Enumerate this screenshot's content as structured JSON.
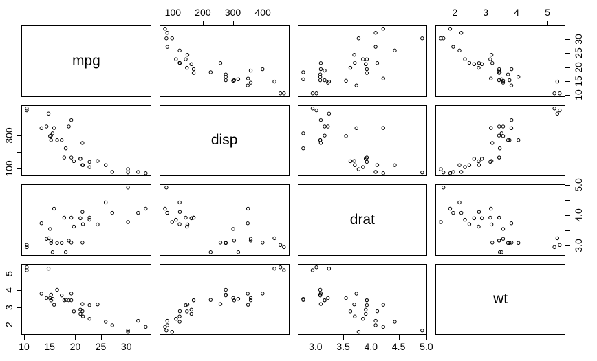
{
  "figure": {
    "description": "R pairs scatterplot matrix of mtcars variables",
    "background": "#ffffff"
  },
  "chart_data": {
    "type": "scatter",
    "subtype": "pairs-matrix",
    "title": "",
    "variables": [
      "mpg",
      "disp",
      "drat",
      "wt"
    ],
    "n_points": 32,
    "observations": {
      "mpg": [
        21.0,
        21.0,
        22.8,
        21.4,
        18.7,
        18.1,
        14.3,
        24.4,
        22.8,
        19.2,
        17.8,
        16.4,
        17.3,
        15.2,
        10.4,
        10.4,
        14.7,
        32.4,
        30.4,
        33.9,
        21.5,
        15.5,
        15.2,
        13.3,
        19.2,
        27.3,
        26.0,
        30.4,
        15.8,
        19.7,
        15.0,
        21.4
      ],
      "disp": [
        160,
        160,
        108,
        258,
        360,
        225,
        360,
        146.7,
        140.8,
        167.6,
        167.6,
        275.8,
        275.8,
        275.8,
        472,
        460,
        440,
        78.7,
        75.7,
        71.1,
        120.1,
        318,
        304,
        350,
        400,
        79,
        120.3,
        95.1,
        351,
        145,
        301,
        121
      ],
      "drat": [
        3.9,
        3.9,
        3.85,
        3.08,
        3.15,
        2.76,
        3.21,
        3.69,
        3.92,
        3.92,
        3.92,
        3.07,
        3.07,
        3.07,
        2.93,
        3.0,
        3.23,
        4.08,
        4.93,
        4.22,
        3.7,
        2.76,
        3.15,
        3.73,
        3.08,
        4.08,
        4.43,
        3.77,
        4.22,
        3.62,
        3.54,
        4.11
      ],
      "wt": [
        2.62,
        2.875,
        2.32,
        3.215,
        3.44,
        3.46,
        3.57,
        3.19,
        3.15,
        3.44,
        3.44,
        4.07,
        3.73,
        3.78,
        5.25,
        5.424,
        5.345,
        2.2,
        1.615,
        1.835,
        2.465,
        3.52,
        3.435,
        3.84,
        3.845,
        1.935,
        2.14,
        1.53,
        3.17,
        2.77,
        3.57,
        2.78
      ]
    },
    "axis_instances": [
      {
        "side": "top",
        "col": 1,
        "var": "disp",
        "ticks": [
          100,
          200,
          300,
          400
        ],
        "labels": [
          "100",
          "200",
          "300",
          "400"
        ]
      },
      {
        "side": "top",
        "col": 3,
        "var": "wt",
        "ticks": [
          2,
          3,
          4,
          5
        ],
        "labels": [
          "2",
          "3",
          "4",
          "5"
        ]
      },
      {
        "side": "right",
        "row": 0,
        "var": "mpg",
        "ticks": [
          10,
          15,
          20,
          25,
          30
        ],
        "labels": [
          "10",
          "15",
          "20",
          "25",
          "30"
        ]
      },
      {
        "side": "right",
        "row": 2,
        "var": "drat",
        "ticks": [
          3.0,
          3.5,
          4.0,
          4.5,
          5.0
        ],
        "labels": [
          "3.0",
          "",
          "4.0",
          "",
          "5.0"
        ]
      },
      {
        "side": "left",
        "row": 1,
        "var": "disp",
        "ticks": [
          100,
          200,
          300,
          400
        ],
        "labels": [
          "100",
          "",
          "300",
          ""
        ]
      },
      {
        "side": "left",
        "row": 3,
        "var": "wt",
        "ticks": [
          2,
          3,
          4,
          5
        ],
        "labels": [
          "2",
          "3",
          "4",
          "5"
        ]
      },
      {
        "side": "bottom",
        "col": 0,
        "var": "mpg",
        "ticks": [
          10,
          15,
          20,
          25,
          30
        ],
        "labels": [
          "10",
          "15",
          "20",
          "25",
          "30"
        ]
      },
      {
        "side": "bottom",
        "col": 2,
        "var": "drat",
        "ticks": [
          3.0,
          3.5,
          4.0,
          4.5,
          5.0
        ],
        "labels": [
          "3.0",
          "3.5",
          "4.0",
          "4.5",
          "5.0"
        ]
      }
    ],
    "axis_ranges": {
      "mpg": [
        9.46,
        34.84
      ],
      "disp": [
        55.06,
        488.04
      ],
      "drat": [
        2.673,
        5.017
      ],
      "wt": [
        1.357,
        5.58
      ]
    },
    "range_extension": 0.04,
    "colors": {
      "point_stroke": "#000000",
      "panel_border": "#000000",
      "tick_color": "#000000",
      "text_color": "#000000",
      "background": "#ffffff"
    },
    "point_style": {
      "shape": "open-circle",
      "radius_px": 2.2,
      "stroke_width_px": 1
    },
    "grid": false,
    "legend": null
  }
}
